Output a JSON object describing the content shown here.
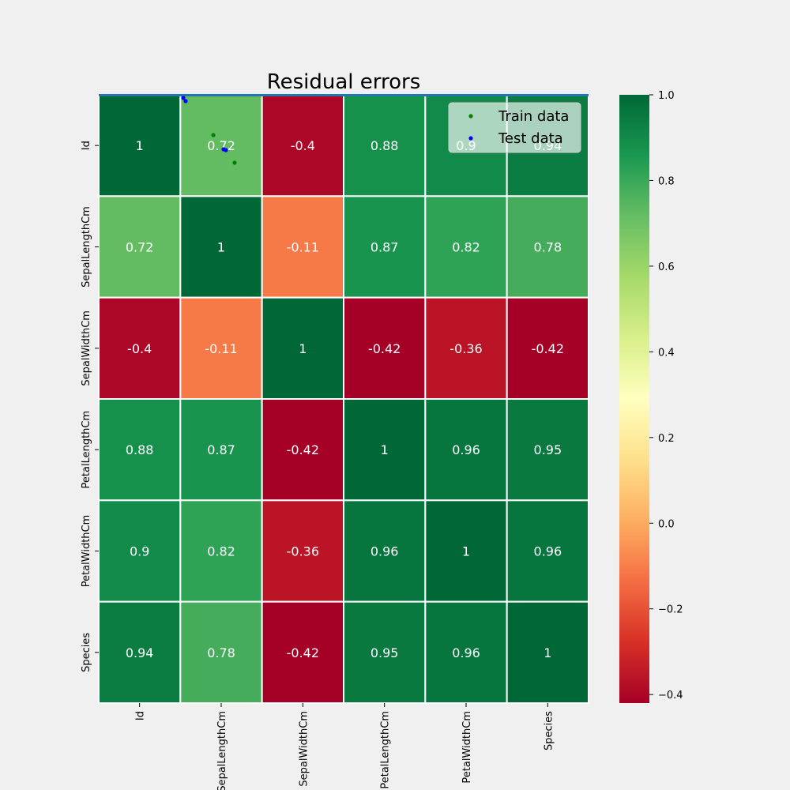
{
  "chart_data": {
    "type": "heatmap",
    "title": "Residual errors",
    "rows": [
      "Id",
      "SepalLengthCm",
      "SepalWidthCm",
      "PetalLengthCm",
      "PetalWidthCm",
      "Species"
    ],
    "cols": [
      "Id",
      "SepalLengthCm",
      "SepalWidthCm",
      "PetalLengthCm",
      "PetalWidthCm",
      "Species"
    ],
    "values": [
      [
        1,
        0.72,
        -0.4,
        0.88,
        0.9,
        0.94
      ],
      [
        0.72,
        1,
        -0.11,
        0.87,
        0.82,
        0.78
      ],
      [
        -0.4,
        -0.11,
        1,
        -0.42,
        -0.36,
        -0.42
      ],
      [
        0.88,
        0.87,
        -0.42,
        1,
        0.96,
        0.95
      ],
      [
        0.9,
        0.82,
        -0.36,
        0.96,
        1,
        0.96
      ],
      [
        0.94,
        0.78,
        -0.42,
        0.95,
        0.96,
        1
      ]
    ],
    "labels": [
      [
        "1",
        "0.72",
        "-0.4",
        "0.88",
        "0.9",
        "0.94"
      ],
      [
        "0.72",
        "1",
        "-0.11",
        "0.87",
        "0.82",
        "0.78"
      ],
      [
        "-0.4",
        "-0.11",
        "1",
        "-0.42",
        "-0.36",
        "-0.42"
      ],
      [
        "0.88",
        "0.87",
        "-0.42",
        "1",
        "0.96",
        "0.95"
      ],
      [
        "0.9",
        "0.82",
        "-0.36",
        "0.96",
        "1",
        "0.96"
      ],
      [
        "0.94",
        "0.78",
        "-0.42",
        "0.95",
        "0.96",
        "1"
      ]
    ],
    "colormap": "RdYlGn",
    "vmin": -0.42,
    "vmax": 1,
    "colorbar_ticks": [
      1.0,
      0.8,
      0.6,
      0.4,
      0.2,
      0.0,
      -0.2,
      -0.4
    ],
    "colorbar_tick_labels": [
      "1.0",
      "0.8",
      "0.6",
      "0.4",
      "0.2",
      "0.0",
      "−0.2",
      "−0.4"
    ],
    "legend": {
      "placement": "top-right",
      "entries": [
        {
          "label": "Train data",
          "color": "#008000"
        },
        {
          "label": "Test data",
          "color": "#0000ff"
        }
      ]
    },
    "reference_line_color": "#1f77b4"
  }
}
